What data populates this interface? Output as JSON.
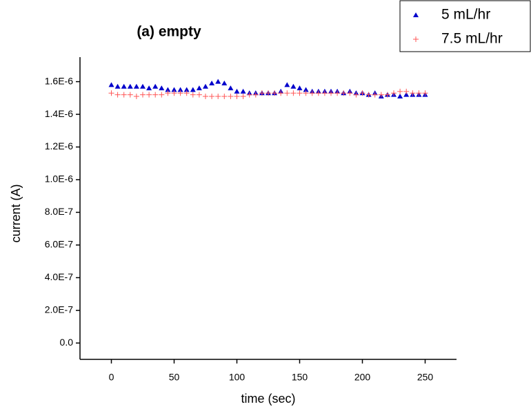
{
  "chart_data": {
    "type": "scatter",
    "title": "(a) empty",
    "x_label": "time (sec)",
    "y_label": "current (A)",
    "x": [
      0,
      5,
      10,
      15,
      20,
      25,
      30,
      35,
      40,
      45,
      50,
      55,
      60,
      65,
      70,
      75,
      80,
      85,
      90,
      95,
      100,
      105,
      110,
      115,
      120,
      125,
      130,
      135,
      140,
      145,
      150,
      155,
      160,
      165,
      170,
      175,
      180,
      185,
      190,
      195,
      200,
      205,
      210,
      215,
      220,
      225,
      230,
      235,
      240,
      245,
      250
    ],
    "series": [
      {
        "name": "5 mL/hr",
        "color": "#0000cc",
        "marker": "triangle",
        "values": [
          1.58e-06,
          1.57e-06,
          1.57e-06,
          1.57e-06,
          1.57e-06,
          1.57e-06,
          1.56e-06,
          1.57e-06,
          1.56e-06,
          1.55e-06,
          1.55e-06,
          1.55e-06,
          1.55e-06,
          1.55e-06,
          1.56e-06,
          1.57e-06,
          1.59e-06,
          1.6e-06,
          1.59e-06,
          1.56e-06,
          1.54e-06,
          1.54e-06,
          1.53e-06,
          1.53e-06,
          1.53e-06,
          1.53e-06,
          1.53e-06,
          1.54e-06,
          1.58e-06,
          1.57e-06,
          1.56e-06,
          1.55e-06,
          1.54e-06,
          1.54e-06,
          1.54e-06,
          1.54e-06,
          1.54e-06,
          1.53e-06,
          1.54e-06,
          1.53e-06,
          1.53e-06,
          1.52e-06,
          1.53e-06,
          1.51e-06,
          1.52e-06,
          1.52e-06,
          1.51e-06,
          1.52e-06,
          1.52e-06,
          1.52e-06,
          1.52e-06
        ]
      },
      {
        "name": "7.5 mL/hr",
        "color": "#ff5555",
        "marker": "plus",
        "values": [
          1.53e-06,
          1.52e-06,
          1.52e-06,
          1.52e-06,
          1.51e-06,
          1.52e-06,
          1.52e-06,
          1.52e-06,
          1.52e-06,
          1.53e-06,
          1.53e-06,
          1.53e-06,
          1.53e-06,
          1.52e-06,
          1.52e-06,
          1.51e-06,
          1.51e-06,
          1.51e-06,
          1.51e-06,
          1.51e-06,
          1.51e-06,
          1.51e-06,
          1.52e-06,
          1.52e-06,
          1.53e-06,
          1.53e-06,
          1.53e-06,
          1.53e-06,
          1.53e-06,
          1.53e-06,
          1.53e-06,
          1.53e-06,
          1.53e-06,
          1.53e-06,
          1.53e-06,
          1.53e-06,
          1.53e-06,
          1.53e-06,
          1.53e-06,
          1.52e-06,
          1.53e-06,
          1.52e-06,
          1.52e-06,
          1.52e-06,
          1.52e-06,
          1.53e-06,
          1.54e-06,
          1.54e-06,
          1.53e-06,
          1.53e-06,
          1.53e-06
        ]
      }
    ],
    "xlim": [
      -25,
      275
    ],
    "xticks": [
      0,
      50,
      100,
      150,
      200,
      250
    ],
    "ylim": [
      -1e-07,
      1.75e-06
    ],
    "yticks": [
      {
        "value": 0,
        "label": "0.0"
      },
      {
        "value": 2e-07,
        "label": "2.0E-7"
      },
      {
        "value": 4e-07,
        "label": "4.0E-7"
      },
      {
        "value": 6e-07,
        "label": "6.0E-7"
      },
      {
        "value": 8e-07,
        "label": "8.0E-7"
      },
      {
        "value": 1e-06,
        "label": "1.0E-6"
      },
      {
        "value": 1.2e-06,
        "label": "1.2E-6"
      },
      {
        "value": 1.4e-06,
        "label": "1.4E-6"
      },
      {
        "value": 1.6e-06,
        "label": "1.6E-6"
      }
    ],
    "legend": "top-right",
    "grid": false
  }
}
